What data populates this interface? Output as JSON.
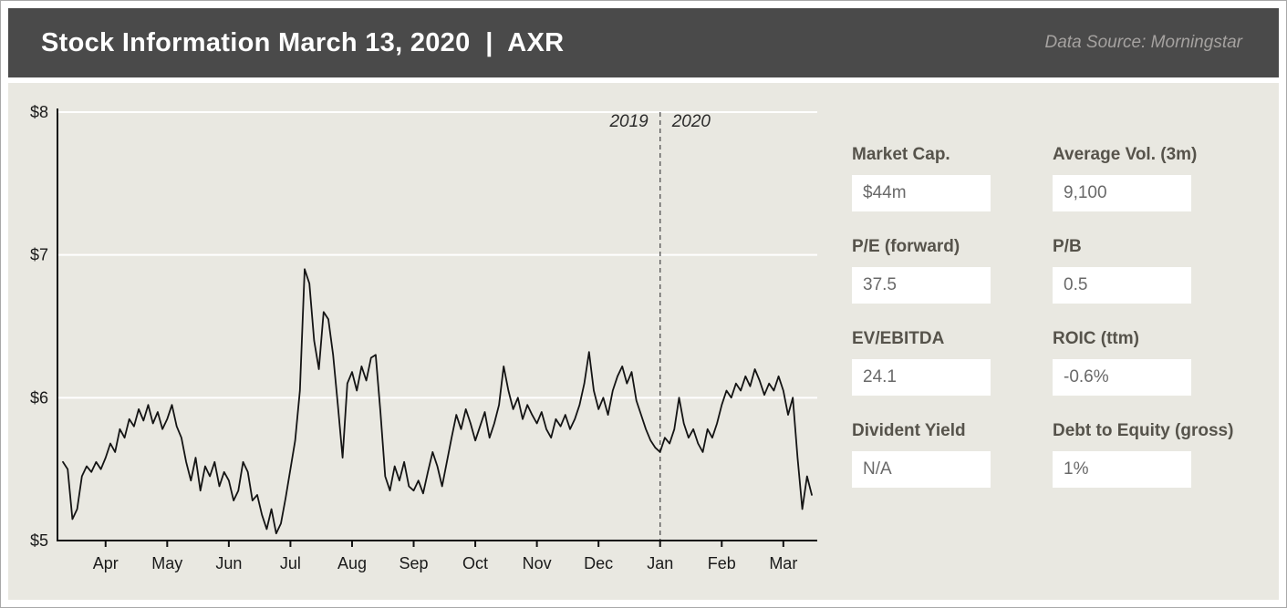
{
  "header": {
    "title": "Stock Information March 13, 2020  |  AXR",
    "data_source": "Data Source: Morningstar"
  },
  "chart_data": {
    "type": "line",
    "title": "",
    "xlabel": "",
    "ylabel": "",
    "ylim": [
      5,
      8
    ],
    "grid": true,
    "legend": "none",
    "line_color": "#141414",
    "grid_color": "#ffffff",
    "axis_color": "#111111",
    "yticks": [
      {
        "label": "$5",
        "value": 5
      },
      {
        "label": "$6",
        "value": 6
      },
      {
        "label": "$7",
        "value": 7
      },
      {
        "label": "$8",
        "value": 8
      }
    ],
    "xticks": [
      {
        "label": "Apr",
        "index": 9
      },
      {
        "label": "May",
        "index": 22
      },
      {
        "label": "Jun",
        "index": 35
      },
      {
        "label": "Jul",
        "index": 48
      },
      {
        "label": "Aug",
        "index": 61
      },
      {
        "label": "Sep",
        "index": 74
      },
      {
        "label": "Oct",
        "index": 87
      },
      {
        "label": "Nov",
        "index": 100
      },
      {
        "label": "Dec",
        "index": 113
      },
      {
        "label": "Jan",
        "index": 126
      },
      {
        "label": "Feb",
        "index": 139
      },
      {
        "label": "Mar",
        "index": 152
      }
    ],
    "divider": {
      "index": 126,
      "left_label": "2019",
      "right_label": "2020"
    },
    "series": [
      {
        "name": "AXR daily share price (USD)",
        "values": [
          5.55,
          5.5,
          5.15,
          5.22,
          5.45,
          5.52,
          5.48,
          5.55,
          5.5,
          5.58,
          5.68,
          5.62,
          5.78,
          5.72,
          5.85,
          5.8,
          5.92,
          5.84,
          5.95,
          5.82,
          5.9,
          5.78,
          5.85,
          5.95,
          5.8,
          5.72,
          5.55,
          5.42,
          5.58,
          5.35,
          5.52,
          5.45,
          5.55,
          5.38,
          5.48,
          5.42,
          5.28,
          5.35,
          5.55,
          5.48,
          5.28,
          5.32,
          5.18,
          5.08,
          5.22,
          5.05,
          5.12,
          5.3,
          5.5,
          5.7,
          6.05,
          6.9,
          6.8,
          6.4,
          6.2,
          6.6,
          6.55,
          6.3,
          5.95,
          5.58,
          6.1,
          6.18,
          6.05,
          6.22,
          6.12,
          6.28,
          6.3,
          5.9,
          5.45,
          5.35,
          5.52,
          5.42,
          5.55,
          5.38,
          5.35,
          5.42,
          5.33,
          5.48,
          5.62,
          5.52,
          5.38,
          5.55,
          5.72,
          5.88,
          5.78,
          5.92,
          5.82,
          5.7,
          5.8,
          5.9,
          5.72,
          5.82,
          5.95,
          6.22,
          6.05,
          5.92,
          6.0,
          5.85,
          5.95,
          5.88,
          5.82,
          5.9,
          5.78,
          5.72,
          5.85,
          5.8,
          5.88,
          5.78,
          5.85,
          5.95,
          6.1,
          6.32,
          6.05,
          5.92,
          6.0,
          5.88,
          6.05,
          6.15,
          6.22,
          6.1,
          6.18,
          5.98,
          5.88,
          5.78,
          5.7,
          5.65,
          5.62,
          5.72,
          5.68,
          5.78,
          6.0,
          5.82,
          5.72,
          5.78,
          5.68,
          5.62,
          5.78,
          5.72,
          5.82,
          5.95,
          6.05,
          6.0,
          6.1,
          6.05,
          6.15,
          6.08,
          6.2,
          6.12,
          6.02,
          6.1,
          6.05,
          6.15,
          6.05,
          5.88,
          6.0,
          5.58,
          5.22,
          5.45,
          5.32
        ]
      }
    ]
  },
  "stats": [
    {
      "label": "Market Cap.",
      "value": "$44m"
    },
    {
      "label": "Average Vol. (3m)",
      "value": "9,100"
    },
    {
      "label": "P/E (forward)",
      "value": "37.5"
    },
    {
      "label": "P/B",
      "value": "0.5"
    },
    {
      "label": "EV/EBITDA",
      "value": "24.1"
    },
    {
      "label": "ROIC (ttm)",
      "value": "-0.6%"
    },
    {
      "label": "Divident Yield",
      "value": "N/A"
    },
    {
      "label": "Debt to Equity (gross)",
      "value": "1%"
    }
  ],
  "colors": {
    "header_bg": "#4a4a4a",
    "panel_bg": "#e9e8e1",
    "stat_label": "#56534b",
    "line": "#141414"
  }
}
